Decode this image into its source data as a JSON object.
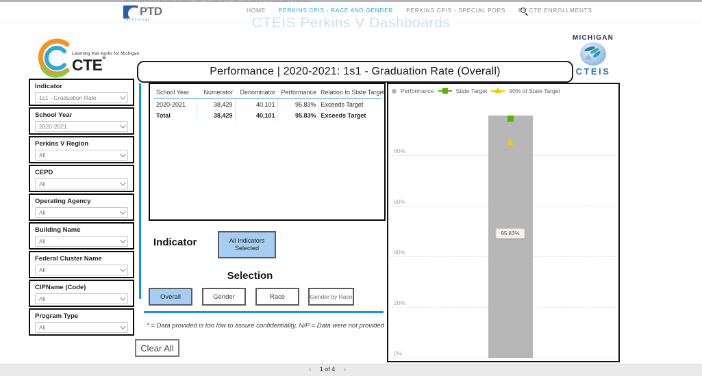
{
  "header": {
    "ghost_fragment": "PERFORMANCE | RACE AND GENDER",
    "ghost_heading": "CTEIS Perkins V Dashboards",
    "ptd": {
      "word": "PTD",
      "sub": "Technology"
    },
    "nav": [
      {
        "label": "HOME",
        "active": false
      },
      {
        "label": "PERKINS CPIS - RACE AND GENDER",
        "active": true
      },
      {
        "label": "PERKINS CPIS - SPECIAL POPS",
        "active": false
      },
      {
        "label": "PV CTE ENROLLMENTS",
        "active": false
      }
    ]
  },
  "branding": {
    "cte_tagline": "Learning that works for Michigan",
    "cte_word": "CTE",
    "cte_reg": "®",
    "michigan": "MICHIGAN",
    "cteis": "CTEIS"
  },
  "title": "Performance | 2020-2021: 1s1 - Graduation Rate (Overall)",
  "filters": [
    {
      "label": "Indicator",
      "value": "1s1 - Graduation Rate"
    },
    {
      "label": "School Year",
      "value": "2020-2021"
    },
    {
      "label": "Perkins V Region",
      "value": "All"
    },
    {
      "label": "CEPD",
      "value": "All"
    },
    {
      "label": "Operating Agency",
      "value": "All"
    },
    {
      "label": "Building Name",
      "value": "All"
    },
    {
      "label": "Federal Cluster Name",
      "value": "All"
    },
    {
      "label": "CIPName (Code)",
      "value": "All"
    },
    {
      "label": "Program Type",
      "value": "All"
    }
  ],
  "clear_all_label": "Clear All",
  "table": {
    "columns": [
      "School Year",
      "Numerator",
      "Denominator",
      "Performance",
      "Relation to State Target"
    ],
    "rows": [
      [
        "2020-2021",
        "38,429",
        "40,101",
        "95.83%",
        "Exceeds Target"
      ],
      [
        "Total",
        "38,429",
        "40,101",
        "95.83%",
        "Exceeds Target"
      ]
    ]
  },
  "indicator_section": {
    "label": "Indicator",
    "button_label": "All Indicators Selected"
  },
  "selection": {
    "heading": "Selection",
    "options": [
      {
        "label": "Overall",
        "selected": true
      },
      {
        "label": "Gender",
        "selected": false
      },
      {
        "label": "Race",
        "selected": false
      },
      {
        "label": "Gender by Race",
        "selected": false
      }
    ]
  },
  "footnote": "* = Data provided is too low to assure confidentiality, N/P = Data were not provided",
  "pagination": {
    "prev": "‹",
    "current": "1 of 4",
    "next": "›"
  },
  "colors": {
    "accent_blue": "#118dff",
    "nav_active_blue": "#31a5db",
    "selected_fill_blue": "#a7cef2",
    "bar_gray": "#b7b7b7",
    "state_target_green": "#54b300",
    "target90_yellow": "#f2c80f",
    "table_rule_blue": "#4aa3ee"
  },
  "chart_data": {
    "type": "bar",
    "title": "",
    "categories": [
      "2020-2021"
    ],
    "series": [
      {
        "name": "Performance",
        "type": "bar",
        "values": [
          95.83
        ],
        "color": "#b7b7b7"
      },
      {
        "name": "State Target",
        "type": "scatter",
        "marker": "square",
        "values": [
          94.9
        ],
        "color": "#54b300"
      },
      {
        "name": "90% of State Target",
        "type": "scatter",
        "marker": "triangle",
        "values": [
          85.4
        ],
        "color": "#f2c80f"
      }
    ],
    "data_label": "95.83%",
    "yticks": [
      "0%",
      "20%",
      "40%",
      "60%",
      "80%"
    ],
    "ylim": [
      0,
      100
    ],
    "grid": "dotted-horizontal",
    "legend_position": "top-left"
  }
}
